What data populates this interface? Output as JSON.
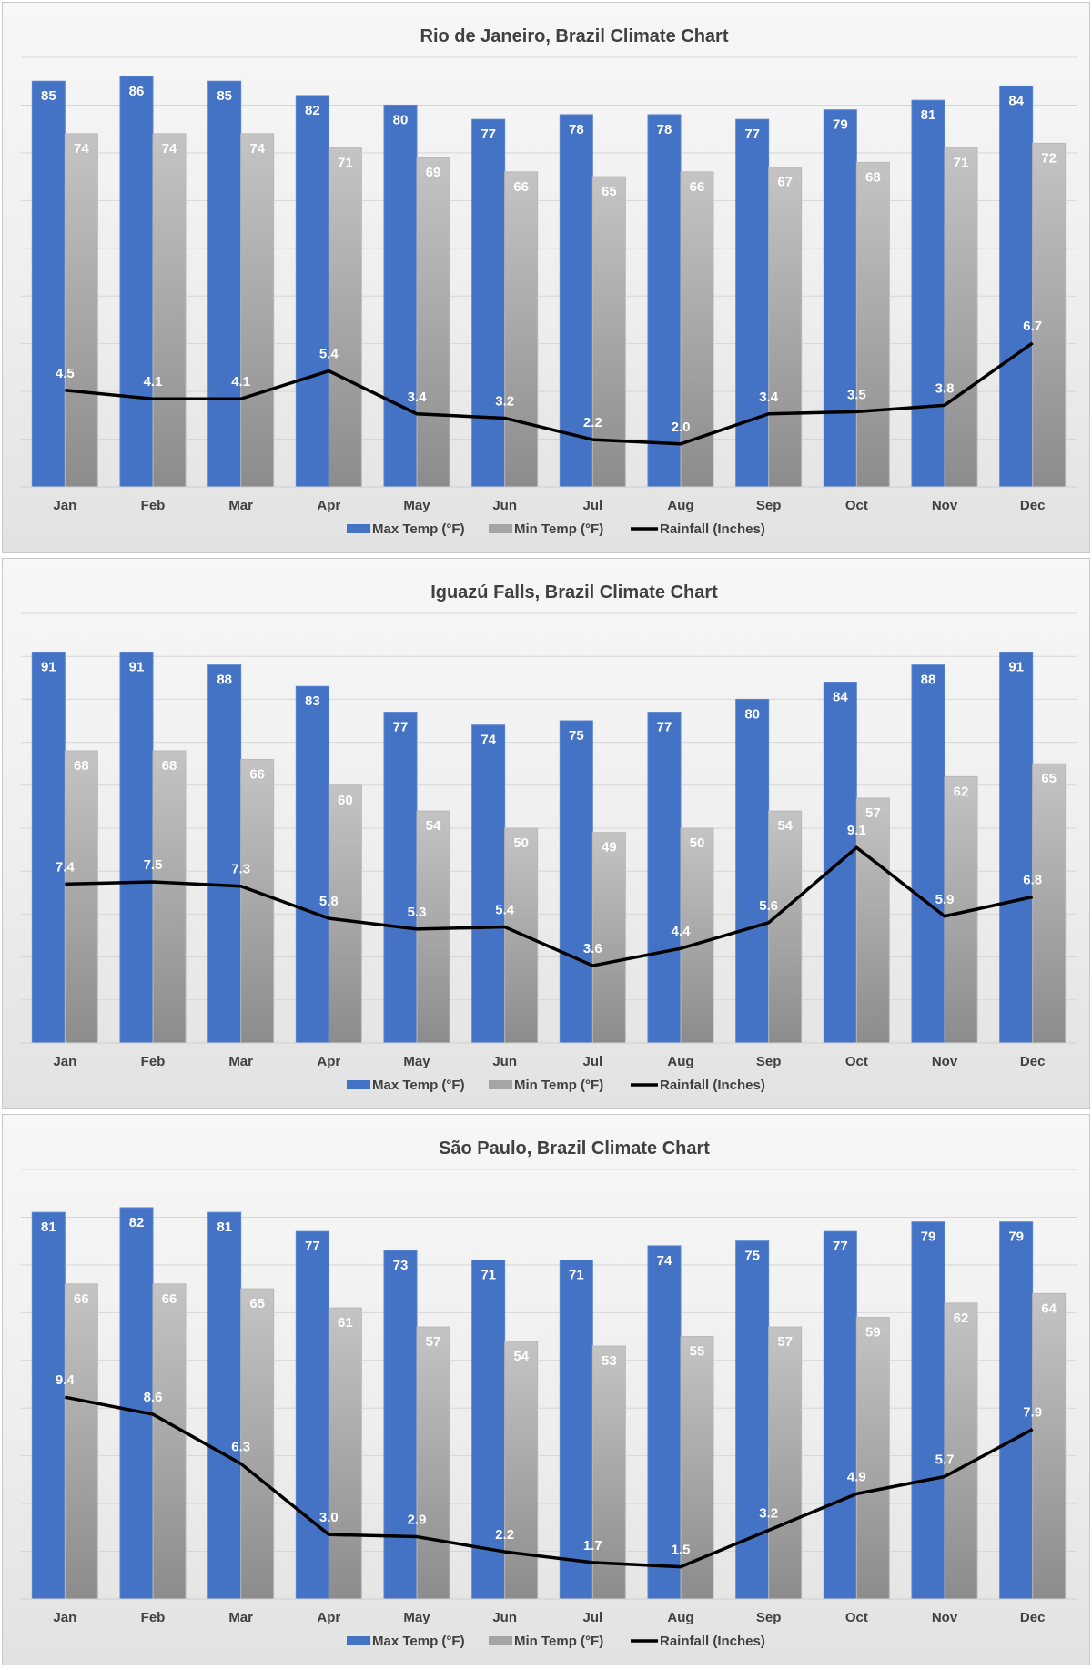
{
  "chart_data": [
    {
      "type": "bar",
      "title": "Rio de Janeiro, Brazil Climate Chart",
      "categories": [
        "Jan",
        "Feb",
        "Mar",
        "Apr",
        "May",
        "Jun",
        "Jul",
        "Aug",
        "Sep",
        "Oct",
        "Nov",
        "Dec"
      ],
      "series": [
        {
          "name": "Max Temp (°F)",
          "type": "bar",
          "color": "#4472c4",
          "values": [
            85,
            86,
            85,
            82,
            80,
            77,
            78,
            78,
            77,
            79,
            81,
            84
          ]
        },
        {
          "name": "Min Temp (°F)",
          "type": "bar",
          "color": "#a5a5a5",
          "values": [
            74,
            74,
            74,
            71,
            69,
            66,
            65,
            66,
            67,
            68,
            71,
            72
          ]
        },
        {
          "name": "Rainfall (Inches)",
          "type": "line",
          "color": "#000000",
          "values": [
            4.5,
            4.1,
            4.1,
            5.4,
            3.4,
            3.2,
            2.2,
            2.0,
            3.4,
            3.5,
            3.8,
            6.7
          ]
        }
      ],
      "ylim": [
        0,
        90
      ],
      "y2lim": [
        0,
        20
      ],
      "grid": true,
      "legend_position": "bottom"
    },
    {
      "type": "bar",
      "title": "Iguazú Falls, Brazil Climate Chart",
      "categories": [
        "Jan",
        "Feb",
        "Mar",
        "Apr",
        "May",
        "Jun",
        "Jul",
        "Aug",
        "Sep",
        "Oct",
        "Nov",
        "Dec"
      ],
      "series": [
        {
          "name": "Max Temp (°F)",
          "type": "bar",
          "color": "#4472c4",
          "values": [
            91,
            91,
            88,
            83,
            77,
            74,
            75,
            77,
            80,
            84,
            88,
            91
          ]
        },
        {
          "name": "Min Temp (°F)",
          "type": "bar",
          "color": "#a5a5a5",
          "values": [
            68,
            68,
            66,
            60,
            54,
            50,
            49,
            50,
            54,
            57,
            62,
            65
          ]
        },
        {
          "name": "Rainfall (Inches)",
          "type": "line",
          "color": "#000000",
          "values": [
            7.4,
            7.5,
            7.3,
            5.8,
            5.3,
            5.4,
            3.6,
            4.4,
            5.6,
            9.1,
            5.9,
            6.8
          ]
        }
      ],
      "ylim": [
        0,
        100
      ],
      "y2lim": [
        0,
        20
      ],
      "grid": true,
      "legend_position": "bottom"
    },
    {
      "type": "bar",
      "title": "São Paulo, Brazil Climate Chart",
      "categories": [
        "Jan",
        "Feb",
        "Mar",
        "Apr",
        "May",
        "Jun",
        "Jul",
        "Aug",
        "Sep",
        "Oct",
        "Nov",
        "Dec"
      ],
      "series": [
        {
          "name": "Max Temp (°F)",
          "type": "bar",
          "color": "#4472c4",
          "values": [
            81,
            82,
            81,
            77,
            73,
            71,
            71,
            74,
            75,
            77,
            79,
            79
          ]
        },
        {
          "name": "Min Temp (°F)",
          "type": "bar",
          "color": "#a5a5a5",
          "values": [
            66,
            66,
            65,
            61,
            57,
            54,
            53,
            55,
            57,
            59,
            62,
            64
          ]
        },
        {
          "name": "Rainfall (Inches)",
          "type": "line",
          "color": "#000000",
          "values": [
            9.4,
            8.6,
            6.3,
            3.0,
            2.9,
            2.2,
            1.7,
            1.5,
            3.2,
            4.9,
            5.7,
            7.9
          ]
        }
      ],
      "ylim": [
        0,
        90
      ],
      "y2lim": [
        0,
        20
      ],
      "grid": true,
      "legend_position": "bottom"
    }
  ]
}
